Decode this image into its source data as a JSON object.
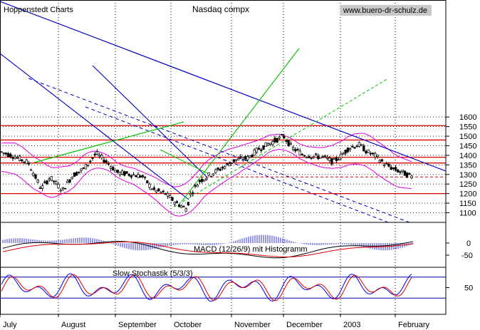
{
  "header": {
    "source": "Hoppenstedt Charts",
    "title": "Nasdaq compx",
    "website": "www.buero-dr-schulz.de"
  },
  "colors": {
    "background": "#ffffff",
    "resistance_lines": "#dd0000",
    "bollinger_bands": "#e000e0",
    "long_trend": "#0000c0",
    "up_trend": "#00c000",
    "candles": "#000000",
    "macd_histogram": "#3333cc",
    "macd_line": "#000000",
    "macd_signal": "#dd0000",
    "stoch_k": "#0000ee",
    "stoch_d": "#dd0000"
  },
  "chart_data": [
    {
      "type": "candlestick",
      "panel": "price",
      "title": "Nasdaq compx",
      "y_ticks": [
        1100,
        1150,
        1200,
        1250,
        1300,
        1350,
        1400,
        1450,
        1500,
        1550,
        1600
      ],
      "ylim": [
        1080,
        1680
      ],
      "x_months": [
        "July",
        "August",
        "September",
        "October",
        "November",
        "December",
        "2003",
        "February"
      ],
      "grid": true,
      "horizontal_levels": [
        1200,
        1360,
        1390,
        1480,
        1555
      ],
      "dashed_level": 1287,
      "last_close": 1282,
      "low_point": 1114,
      "high_point": 1521
    },
    {
      "type": "line",
      "panel": "macd",
      "title": "MACD (12/26/9) mit Histogramm",
      "y_ticks": [
        0,
        -50
      ],
      "series": [
        {
          "name": "MACD"
        },
        {
          "name": "Signal"
        },
        {
          "name": "Histogramm"
        }
      ]
    },
    {
      "type": "line",
      "panel": "stochastic",
      "title": "Slow Stochastik (5/3/3)",
      "y_ticks": [
        50
      ],
      "levels": [
        80,
        20
      ],
      "series": [
        {
          "name": "%K"
        },
        {
          "name": "%D"
        }
      ]
    }
  ]
}
